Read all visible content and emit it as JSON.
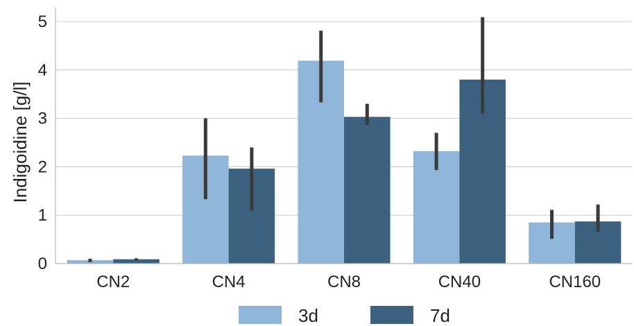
{
  "chart_data": {
    "type": "bar",
    "ylabel": "Indigoidine [g/l]",
    "ylim": [
      0,
      5.3
    ],
    "yticks": [
      "0",
      "1",
      "2",
      "3",
      "4",
      "5"
    ],
    "grid": true,
    "legend_position": "bottom-center",
    "categories": [
      "CN2",
      "CN4",
      "CN8",
      "CN40",
      "CN160"
    ],
    "series": [
      {
        "name": "3d",
        "color": "#8fb5d9",
        "values": [
          0.07,
          2.23,
          4.19,
          2.32,
          0.85
        ],
        "err_low": [
          0.03,
          1.33,
          3.33,
          1.93,
          0.51
        ],
        "err_high": [
          0.1,
          3.0,
          4.81,
          2.7,
          1.11
        ]
      },
      {
        "name": "7d",
        "color": "#3b617f",
        "values": [
          0.09,
          1.96,
          3.03,
          3.8,
          0.87
        ],
        "err_low": [
          0.06,
          1.1,
          2.87,
          3.1,
          0.66
        ],
        "err_high": [
          0.11,
          2.4,
          3.3,
          5.09,
          1.22
        ]
      }
    ]
  }
}
